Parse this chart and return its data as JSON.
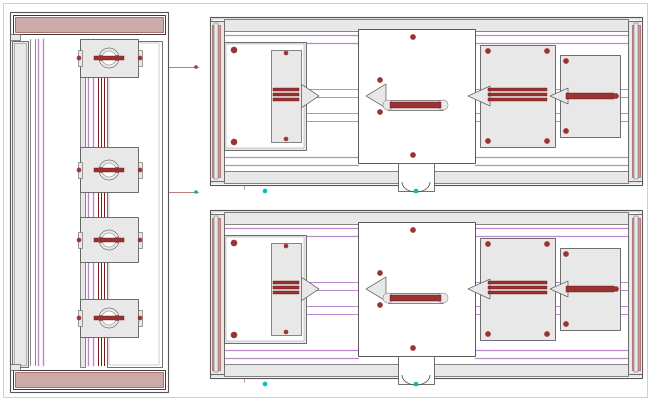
{
  "bg": "#ffffff",
  "dc": "#555555",
  "dc2": "#333333",
  "gc": "#888888",
  "pc": "#bb88cc",
  "rc": "#993333",
  "drc": "#771111",
  "cc": "#00bbbb",
  "brown": "#994444",
  "lbg": "#e8e8e8",
  "frame_fc": "#d8d8d8",
  "white": "#ffffff"
}
